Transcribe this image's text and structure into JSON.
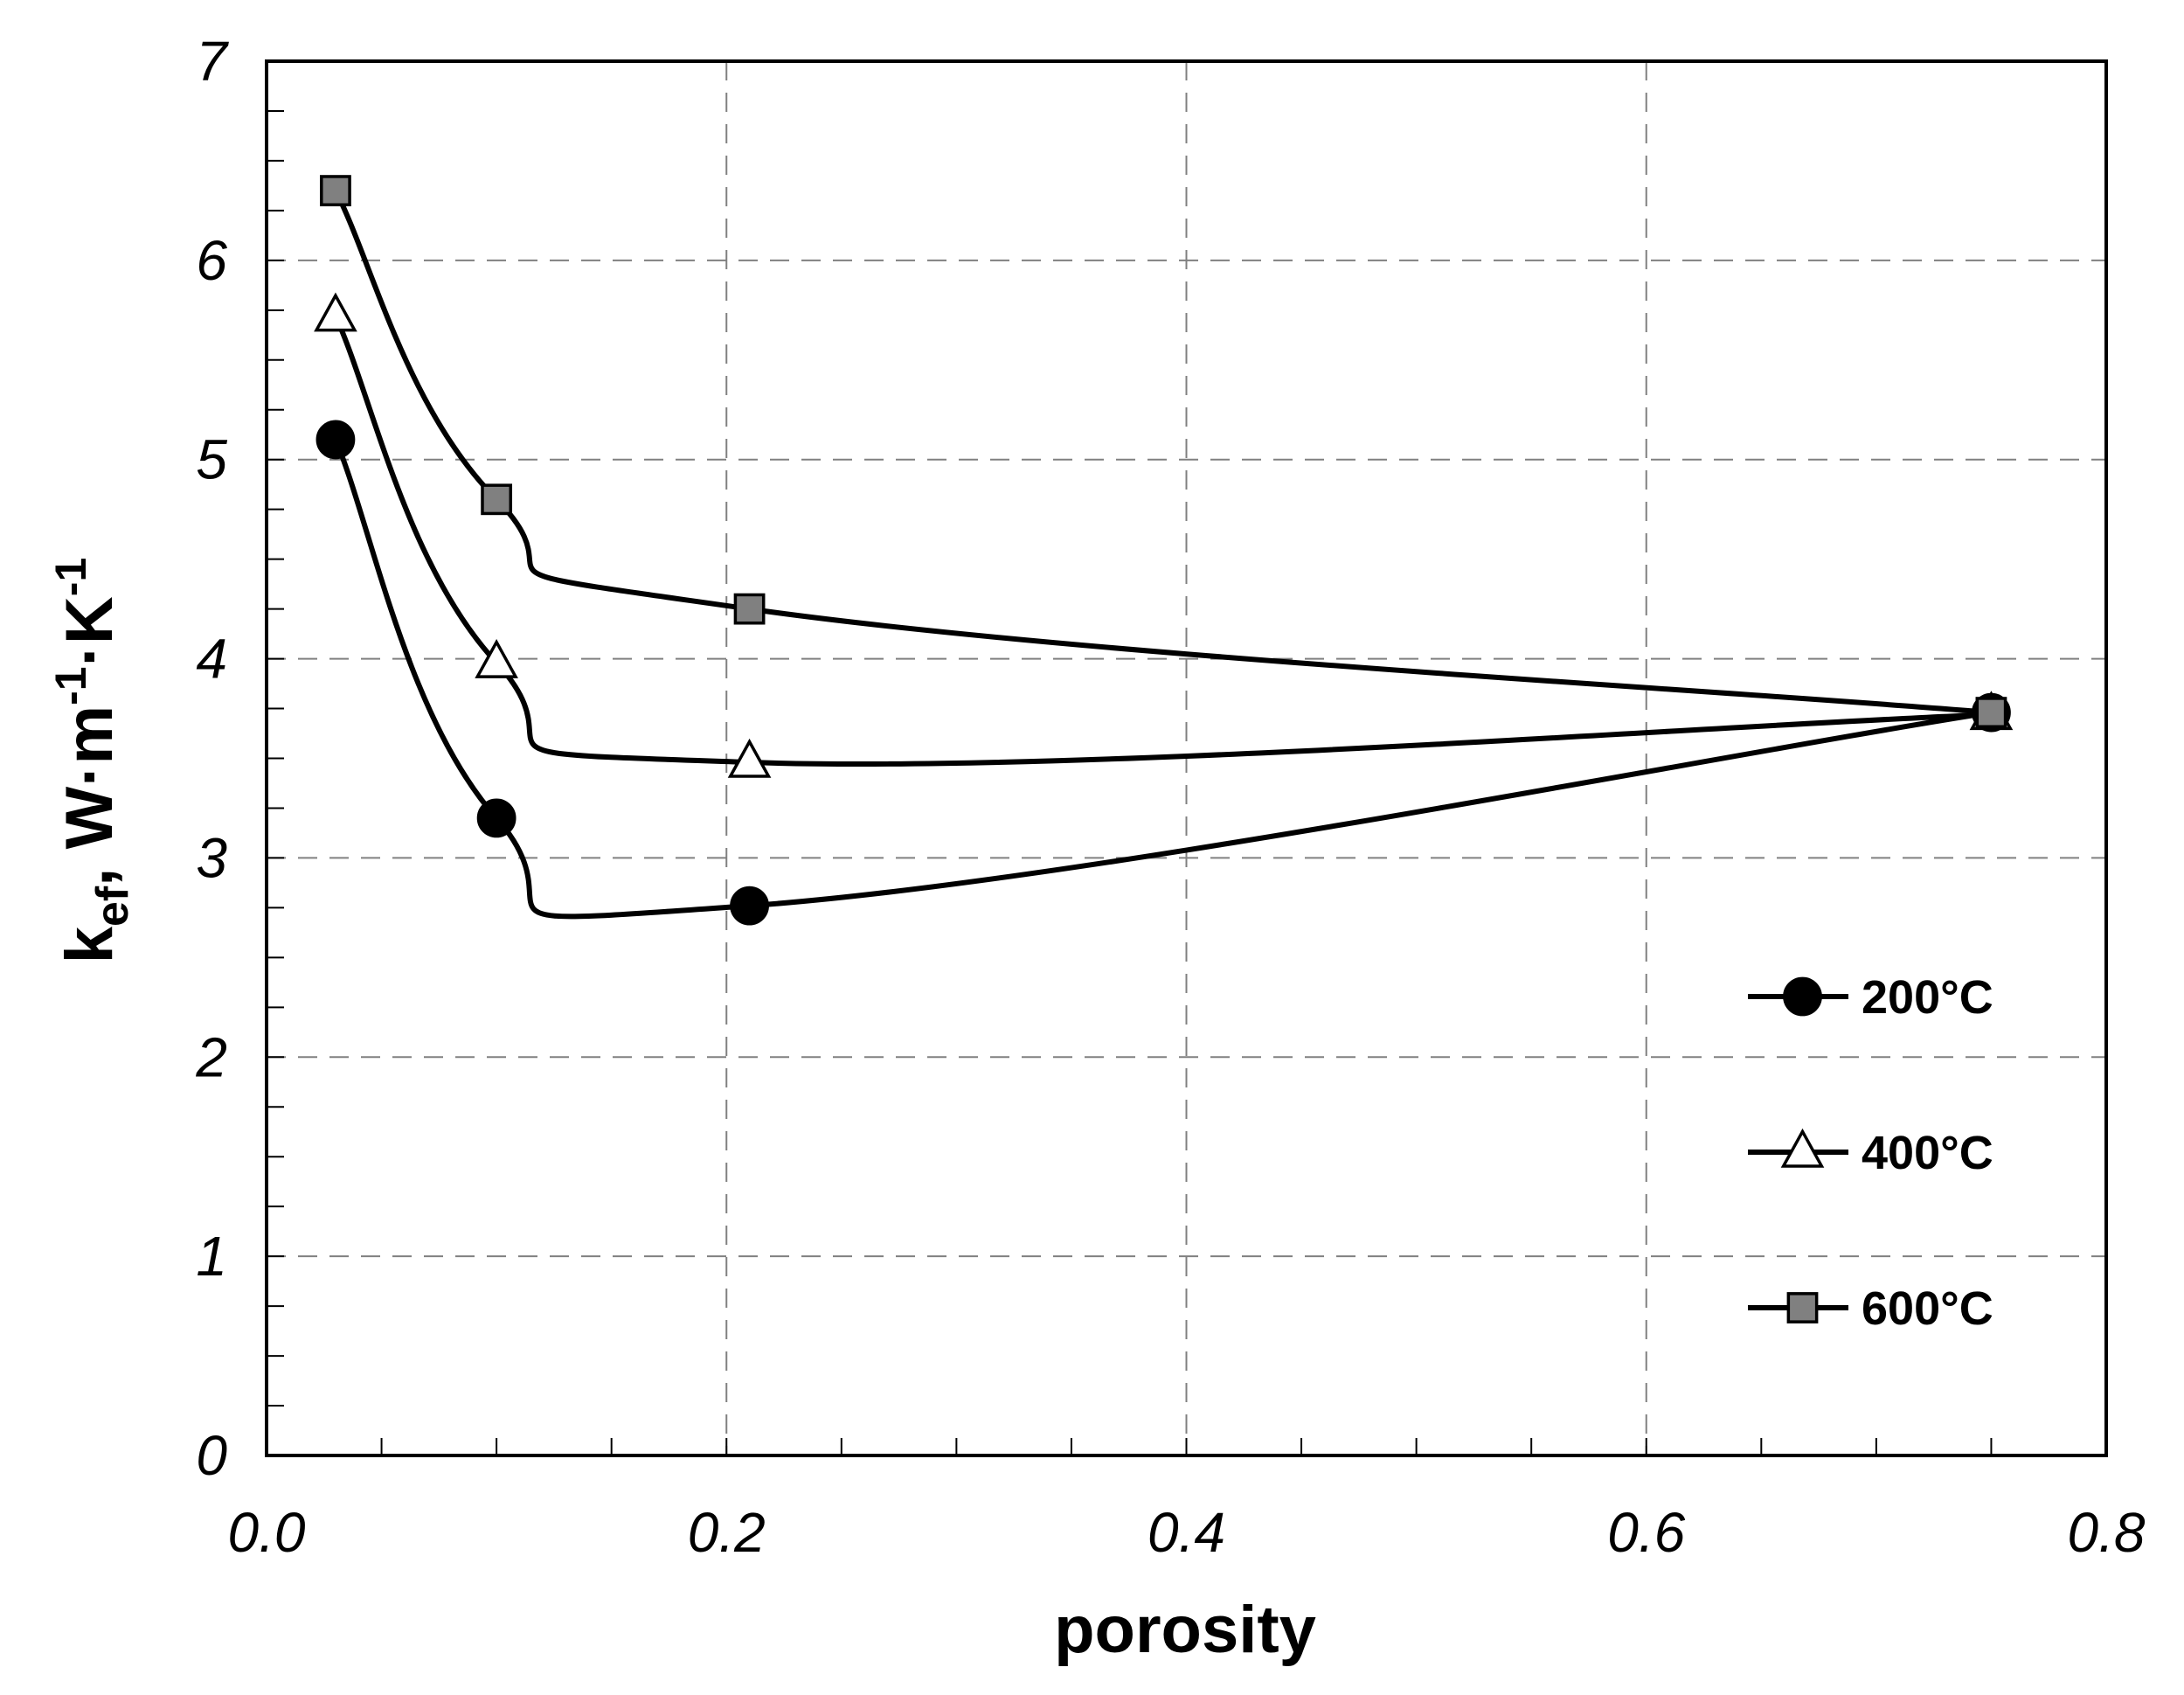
{
  "chart_data": {
    "type": "line",
    "title": "",
    "xlabel": "porosity",
    "ylabel": {
      "base": "k",
      "subscript": "ef",
      "unit_prefix": ", W·m",
      "unit_exp1": "-1",
      "unit_mid": "·K",
      "unit_exp2": "-1"
    },
    "xlim": [
      0.0,
      0.8
    ],
    "ylim": [
      0,
      7
    ],
    "x_ticks": [
      "0.0",
      "0.2",
      "0.4",
      "0.6",
      "0.8"
    ],
    "y_ticks": [
      "0",
      "1",
      "2",
      "3",
      "4",
      "5",
      "6",
      "7"
    ],
    "grid": true,
    "legend_position": "right-lower",
    "series": [
      {
        "name": "200°C",
        "marker": "circle",
        "x": [
          0.03,
          0.1,
          0.21,
          0.75
        ],
        "y": [
          5.1,
          3.2,
          2.76,
          3.73
        ]
      },
      {
        "name": "400°C",
        "marker": "triangle",
        "x": [
          0.03,
          0.1,
          0.21,
          0.75
        ],
        "y": [
          5.72,
          3.98,
          3.48,
          3.72
        ]
      },
      {
        "name": "600°C",
        "marker": "square",
        "x": [
          0.03,
          0.1,
          0.21,
          0.75
        ],
        "y": [
          6.35,
          4.8,
          4.25,
          3.73
        ]
      }
    ]
  },
  "colors": {
    "line": "#000000",
    "marker_circle": "#000000",
    "marker_triangle": "#ffffff",
    "marker_square": "#808080",
    "grid": "#808080"
  }
}
